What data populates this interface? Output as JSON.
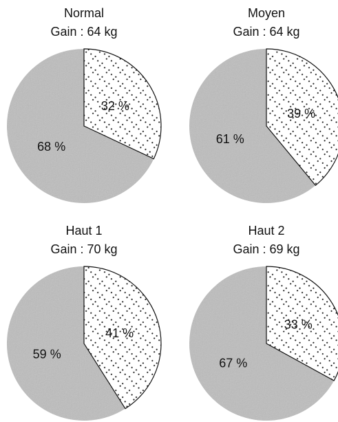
{
  "chart_data": [
    {
      "type": "pie",
      "title": "Normal",
      "subtitle": "Gain : 64 kg",
      "slices": [
        {
          "label": "32 %",
          "value": 32,
          "pattern": "dotted"
        },
        {
          "label": "68 %",
          "value": 68,
          "pattern": "gray"
        }
      ]
    },
    {
      "type": "pie",
      "title": "Moyen",
      "subtitle": "Gain : 64 kg",
      "slices": [
        {
          "label": "39 %",
          "value": 39,
          "pattern": "dotted"
        },
        {
          "label": "61 %",
          "value": 61,
          "pattern": "gray"
        }
      ]
    },
    {
      "type": "pie",
      "title": "Haut 1",
      "subtitle": "Gain : 70 kg",
      "slices": [
        {
          "label": "41 %",
          "value": 41,
          "pattern": "dotted"
        },
        {
          "label": "59 %",
          "value": 59,
          "pattern": "gray"
        }
      ]
    },
    {
      "type": "pie",
      "title": "Haut 2",
      "subtitle": "Gain : 69 kg",
      "slices": [
        {
          "label": "33 %",
          "value": 33,
          "pattern": "dotted"
        },
        {
          "label": "67 %",
          "value": 67,
          "pattern": "gray"
        }
      ]
    }
  ],
  "colors": {
    "gray_fill": "#bdbdbd",
    "dot_fill": "#ffffff",
    "dot_color": "#222222",
    "outline": "#111111"
  }
}
